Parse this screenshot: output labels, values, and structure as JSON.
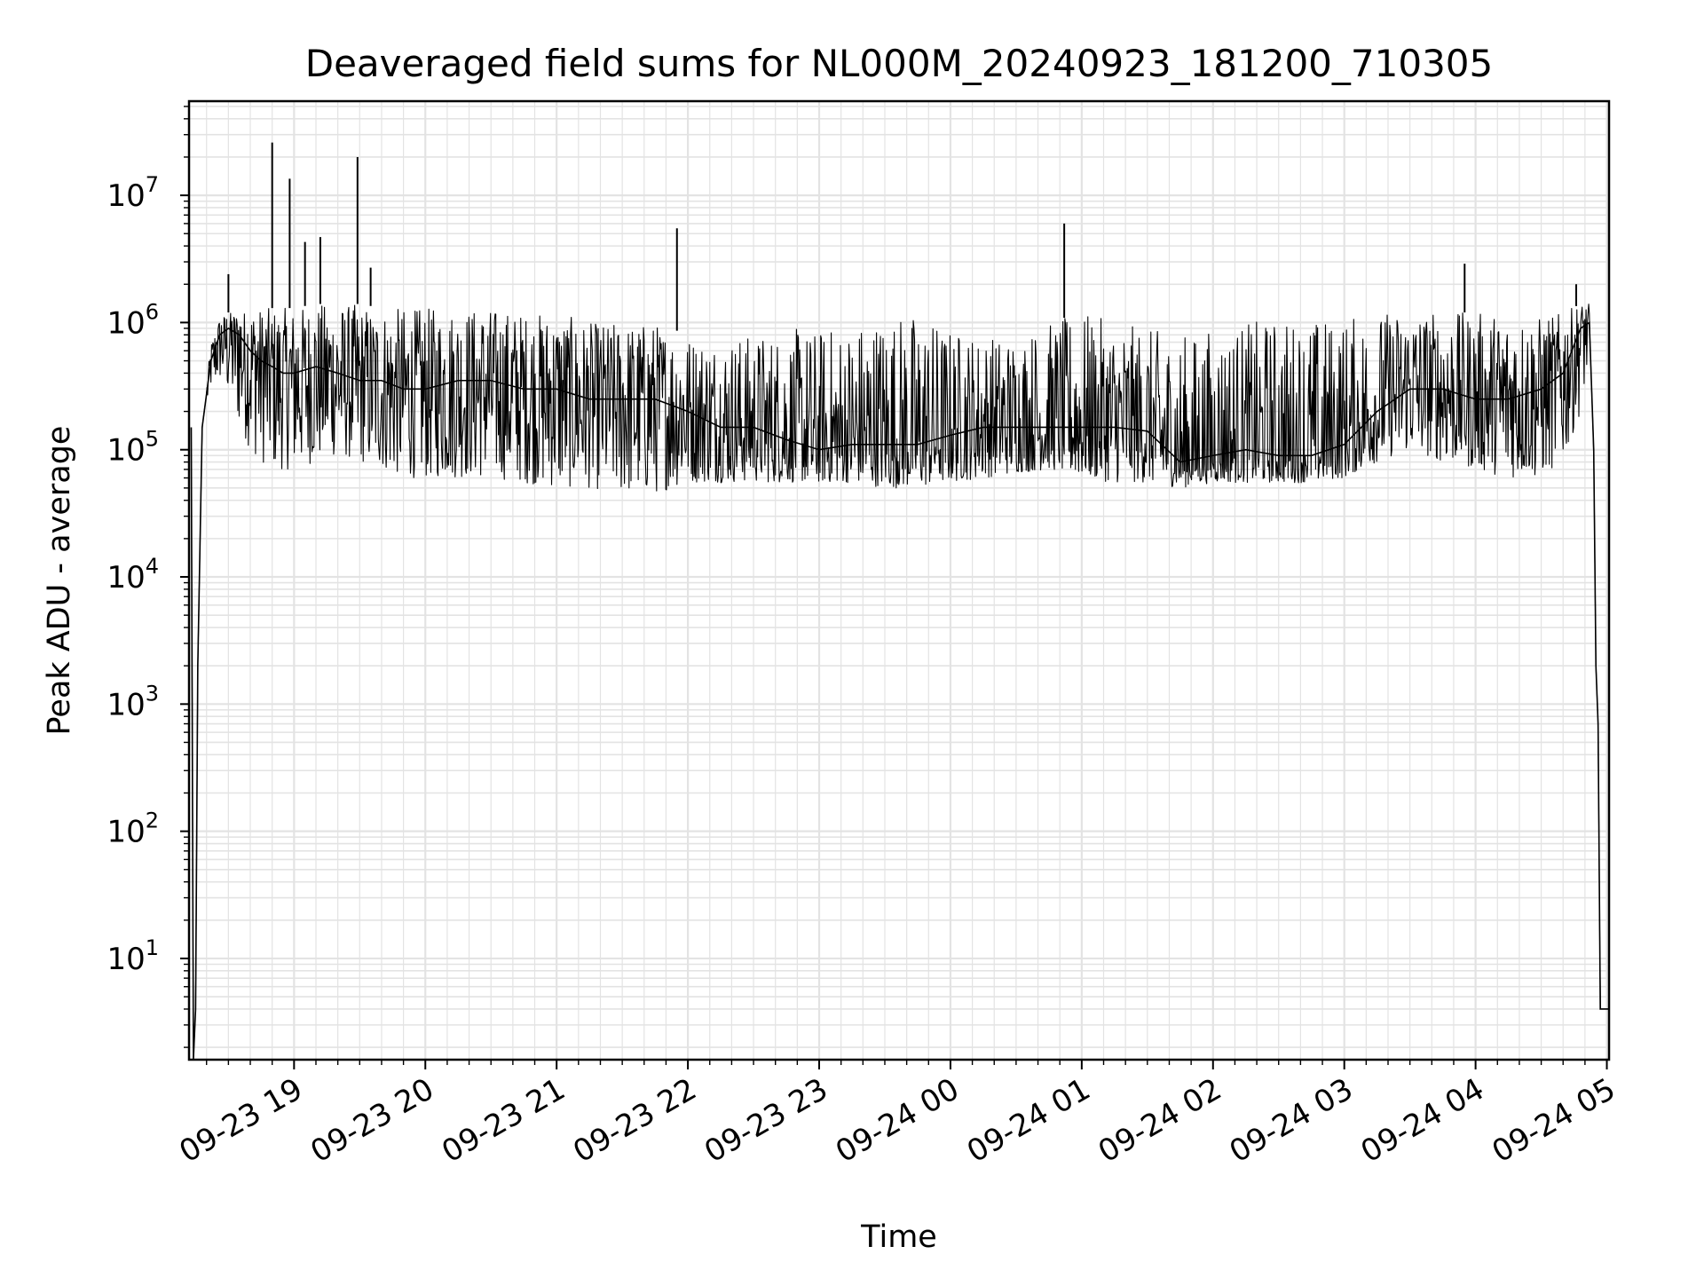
{
  "chart_data": {
    "type": "line",
    "title": "Deaveraged field sums for NL000M_20240923_181200_710305",
    "xlabel": "Time",
    "ylabel": "Peak ADU - average",
    "y_scale": "log",
    "ylim": [
      1.6,
      55000000
    ],
    "xlim": [
      "2024-09-23 18:12",
      "2024-09-24 05:01"
    ],
    "grid": true,
    "line_color": "#000000",
    "grid_color": "#e3e3e3",
    "x_ticks": [
      {
        "value": "2024-09-23 19:00",
        "label": "09-23 19"
      },
      {
        "value": "2024-09-23 20:00",
        "label": "09-23 20"
      },
      {
        "value": "2024-09-23 21:00",
        "label": "09-23 21"
      },
      {
        "value": "2024-09-23 22:00",
        "label": "09-23 22"
      },
      {
        "value": "2024-09-23 23:00",
        "label": "09-23 23"
      },
      {
        "value": "2024-09-24 00:00",
        "label": "09-24 00"
      },
      {
        "value": "2024-09-24 01:00",
        "label": "09-24 01"
      },
      {
        "value": "2024-09-24 02:00",
        "label": "09-24 02"
      },
      {
        "value": "2024-09-24 03:00",
        "label": "09-24 03"
      },
      {
        "value": "2024-09-24 04:00",
        "label": "09-24 04"
      },
      {
        "value": "2024-09-24 05:00",
        "label": "09-24 05"
      }
    ],
    "y_ticks": [
      {
        "value": 10,
        "base": "10",
        "exp": "1"
      },
      {
        "value": 100,
        "base": "10",
        "exp": "2"
      },
      {
        "value": 1000,
        "base": "10",
        "exp": "3"
      },
      {
        "value": 10000,
        "base": "10",
        "exp": "4"
      },
      {
        "value": 100000,
        "base": "10",
        "exp": "5"
      },
      {
        "value": 1000000,
        "base": "10",
        "exp": "6"
      },
      {
        "value": 10000000,
        "base": "10",
        "exp": "7"
      }
    ],
    "series": [
      {
        "x": [
          "2024-09-23 18:13",
          "2024-09-23 18:14",
          "2024-09-23 18:15",
          "2024-09-23 18:16",
          "2024-09-23 18:18",
          "2024-09-23 18:22",
          "2024-09-23 18:26",
          "2024-09-23 18:30",
          "2024-09-23 18:35",
          "2024-09-23 18:40",
          "2024-09-23 18:45",
          "2024-09-23 18:50",
          "2024-09-23 18:55",
          "2024-09-23 19:00",
          "2024-09-23 19:10",
          "2024-09-23 19:20",
          "2024-09-23 19:30",
          "2024-09-23 19:40",
          "2024-09-23 19:50",
          "2024-09-23 20:00",
          "2024-09-23 20:15",
          "2024-09-23 20:30",
          "2024-09-23 20:45",
          "2024-09-23 21:00",
          "2024-09-23 21:15",
          "2024-09-23 21:30",
          "2024-09-23 21:45",
          "2024-09-23 22:00",
          "2024-09-23 22:15",
          "2024-09-23 22:30",
          "2024-09-23 22:45",
          "2024-09-23 23:00",
          "2024-09-23 23:15",
          "2024-09-23 23:30",
          "2024-09-23 23:45",
          "2024-09-24 00:00",
          "2024-09-24 00:15",
          "2024-09-24 00:30",
          "2024-09-24 00:45",
          "2024-09-24 01:00",
          "2024-09-24 01:15",
          "2024-09-24 01:30",
          "2024-09-24 01:45",
          "2024-09-24 02:00",
          "2024-09-24 02:15",
          "2024-09-24 02:30",
          "2024-09-24 02:45",
          "2024-09-24 03:00",
          "2024-09-24 03:15",
          "2024-09-24 03:30",
          "2024-09-24 03:45",
          "2024-09-24 04:00",
          "2024-09-24 04:15",
          "2024-09-24 04:30",
          "2024-09-24 04:40",
          "2024-09-24 04:48",
          "2024-09-24 04:52",
          "2024-09-24 04:54",
          "2024-09-24 04:55",
          "2024-09-24 04:56",
          "2024-09-24 04:57",
          "2024-09-24 05:01"
        ],
        "y": [
          150000,
          1.6,
          4,
          2000,
          150000,
          500000,
          800000,
          900000,
          800000,
          600000,
          500000,
          450000,
          400000,
          400000,
          450000,
          400000,
          350000,
          350000,
          300000,
          300000,
          350000,
          350000,
          300000,
          300000,
          250000,
          250000,
          250000,
          200000,
          150000,
          150000,
          120000,
          100000,
          110000,
          110000,
          110000,
          130000,
          150000,
          150000,
          150000,
          150000,
          150000,
          140000,
          80000,
          90000,
          100000,
          90000,
          90000,
          110000,
          200000,
          300000,
          300000,
          250000,
          250000,
          300000,
          400000,
          900000,
          1000000,
          100000,
          2000,
          700,
          4,
          4
        ],
        "envelope_low": [
          150000,
          1.6,
          4,
          2000,
          150000,
          300000,
          350000,
          250000,
          150000,
          100000,
          80000,
          70000,
          70000,
          70000,
          80000,
          90000,
          80000,
          70000,
          60000,
          60000,
          60000,
          60000,
          55000,
          50000,
          50000,
          45000,
          45000,
          55000,
          55000,
          55000,
          55000,
          55000,
          55000,
          50000,
          50000,
          55000,
          60000,
          65000,
          70000,
          60000,
          55000,
          55000,
          50000,
          55000,
          55000,
          55000,
          55000,
          60000,
          80000,
          100000,
          80000,
          70000,
          60000,
          60000,
          80000,
          200000,
          500000,
          100000,
          2000,
          700,
          4,
          4
        ],
        "envelope_high": [
          150000,
          1.6,
          4,
          2000,
          150000,
          700000,
          1100000,
          1200000,
          1200000,
          1300000,
          1300000,
          1300000,
          1300000,
          1300000,
          1400000,
          1400000,
          1400000,
          1300000,
          1300000,
          1300000,
          1300000,
          1300000,
          1200000,
          1200000,
          1000000,
          1000000,
          1000000,
          800000,
          800000,
          800000,
          900000,
          900000,
          1000000,
          1200000,
          1200000,
          900000,
          800000,
          800000,
          1000000,
          1200000,
          1000000,
          900000,
          800000,
          900000,
          1000000,
          1100000,
          1100000,
          1100000,
          1200000,
          1300000,
          1200000,
          1200000,
          1200000,
          1100000,
          1200000,
          1400000,
          1400000,
          100000,
          2000,
          700,
          4,
          4
        ],
        "spikes": [
          {
            "x": "2024-09-23 18:30",
            "y": 2400000
          },
          {
            "x": "2024-09-23 18:50",
            "y": 26000000
          },
          {
            "x": "2024-09-23 18:58",
            "y": 13500000
          },
          {
            "x": "2024-09-23 19:05",
            "y": 4300000
          },
          {
            "x": "2024-09-23 19:12",
            "y": 4700000
          },
          {
            "x": "2024-09-23 19:29",
            "y": 20000000
          },
          {
            "x": "2024-09-23 19:35",
            "y": 2700000
          },
          {
            "x": "2024-09-23 21:55",
            "y": 5500000
          },
          {
            "x": "2024-09-24 00:52",
            "y": 6000000
          },
          {
            "x": "2024-09-24 03:55",
            "y": 2900000
          },
          {
            "x": "2024-09-24 04:46",
            "y": 2000000
          }
        ]
      }
    ]
  }
}
